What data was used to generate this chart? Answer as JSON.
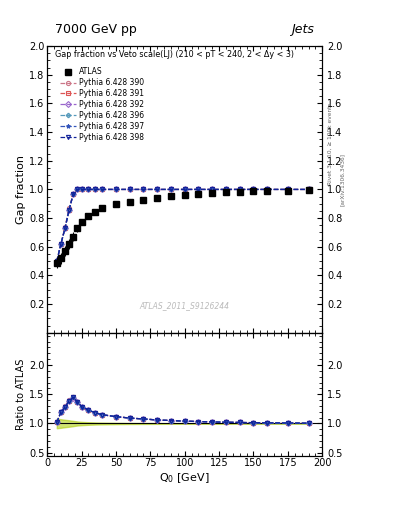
{
  "title_top": "7000 GeV pp",
  "title_right": "Jets",
  "plot_title": "Gap fraction vs Veto scale(LJ) (210 < pT < 240, 2 < Δy < 3)",
  "xlabel": "Q$_0$ [GeV]",
  "ylabel_main": "Gap fraction",
  "ylabel_ratio": "Ratio to ATLAS",
  "watermark": "ATLAS_2011_S9126244",
  "right_label_top": "Rivet 3.1.10, ≥ 100k events",
  "right_label_bot": "[arXiv:1306.3436]",
  "xlim": [
    0,
    200
  ],
  "ylim_main": [
    0.0,
    2.0
  ],
  "ylim_ratio": [
    0.45,
    2.55
  ],
  "ratio_yticks": [
    0.5,
    1.0,
    1.5,
    2.0
  ],
  "main_yticks": [
    0.2,
    0.4,
    0.6,
    0.8,
    1.0,
    1.2,
    1.4,
    1.6,
    1.8,
    2.0
  ],
  "atlas_color": "#000000",
  "series": [
    {
      "label": "Pythia 6.428 390",
      "color": "#cc7788",
      "marker": "o",
      "linestyle": "--"
    },
    {
      "label": "Pythia 6.428 391",
      "color": "#dd5555",
      "marker": "s",
      "linestyle": "--"
    },
    {
      "label": "Pythia 6.428 392",
      "color": "#9966cc",
      "marker": "D",
      "linestyle": "--"
    },
    {
      "label": "Pythia 6.428 396",
      "color": "#5599bb",
      "marker": "P",
      "linestyle": "--"
    },
    {
      "label": "Pythia 6.428 397",
      "color": "#3355bb",
      "marker": "*",
      "linestyle": "--"
    },
    {
      "label": "Pythia 6.428 398",
      "color": "#112299",
      "marker": "v",
      "linestyle": "--"
    }
  ],
  "atlas_x": [
    7,
    10,
    13,
    16,
    19,
    22,
    25,
    30,
    35,
    40,
    50,
    60,
    70,
    80,
    90,
    100,
    110,
    120,
    130,
    140,
    150,
    160,
    175,
    190
  ],
  "atlas_y": [
    0.49,
    0.52,
    0.57,
    0.62,
    0.67,
    0.73,
    0.775,
    0.815,
    0.845,
    0.87,
    0.895,
    0.915,
    0.928,
    0.943,
    0.952,
    0.961,
    0.968,
    0.974,
    0.979,
    0.983,
    0.986,
    0.989,
    0.992,
    0.995
  ],
  "atlas_err": [
    0.04,
    0.038,
    0.036,
    0.034,
    0.03,
    0.025,
    0.022,
    0.018,
    0.015,
    0.013,
    0.01,
    0.008,
    0.007,
    0.006,
    0.005,
    0.005,
    0.004,
    0.004,
    0.003,
    0.003,
    0.003,
    0.002,
    0.002,
    0.002
  ],
  "mc_x": [
    7,
    10,
    13,
    16,
    19,
    22,
    25,
    30,
    35,
    40,
    50,
    60,
    70,
    80,
    90,
    100,
    110,
    120,
    130,
    140,
    150,
    160,
    175,
    190
  ],
  "mc_y_390": [
    0.5,
    0.62,
    0.74,
    0.87,
    0.97,
    1.0,
    1.0,
    1.0,
    1.0,
    1.0,
    1.0,
    1.0,
    1.0,
    1.0,
    1.0,
    1.0,
    1.0,
    1.0,
    1.0,
    1.0,
    1.0,
    1.0,
    1.0,
    1.0
  ],
  "mc_y_391": [
    0.5,
    0.62,
    0.73,
    0.86,
    0.97,
    1.0,
    1.0,
    1.0,
    1.0,
    1.0,
    1.0,
    1.0,
    1.0,
    1.0,
    1.0,
    1.0,
    1.0,
    1.0,
    1.0,
    1.0,
    1.0,
    1.0,
    1.0,
    1.0
  ],
  "mc_y_392": [
    0.5,
    0.62,
    0.73,
    0.86,
    0.965,
    1.0,
    1.0,
    1.0,
    1.0,
    1.0,
    1.0,
    1.0,
    1.0,
    1.0,
    1.0,
    1.0,
    1.0,
    1.0,
    1.0,
    1.0,
    1.0,
    1.0,
    1.0,
    1.0
  ],
  "mc_y_396": [
    0.5,
    0.62,
    0.73,
    0.86,
    0.97,
    1.0,
    1.0,
    1.0,
    1.0,
    1.0,
    1.0,
    1.0,
    1.0,
    1.0,
    1.0,
    1.0,
    1.0,
    1.0,
    1.0,
    1.0,
    1.0,
    1.0,
    1.0,
    1.0
  ],
  "mc_y_397": [
    0.5,
    0.62,
    0.73,
    0.86,
    0.97,
    1.0,
    1.0,
    1.0,
    1.0,
    1.0,
    1.0,
    1.0,
    1.0,
    1.0,
    1.0,
    1.0,
    1.0,
    1.0,
    1.0,
    1.0,
    1.0,
    1.0,
    1.0,
    1.0
  ],
  "mc_y_398": [
    0.5,
    0.62,
    0.73,
    0.86,
    0.97,
    1.0,
    1.0,
    1.0,
    1.0,
    1.0,
    1.0,
    1.0,
    1.0,
    1.0,
    1.0,
    1.0,
    1.0,
    1.0,
    1.0,
    1.0,
    1.0,
    1.0,
    1.0,
    1.0
  ],
  "bg_color": "#ffffff",
  "ratio_band_color": "#aacc00",
  "ratio_band_alpha": 0.55
}
